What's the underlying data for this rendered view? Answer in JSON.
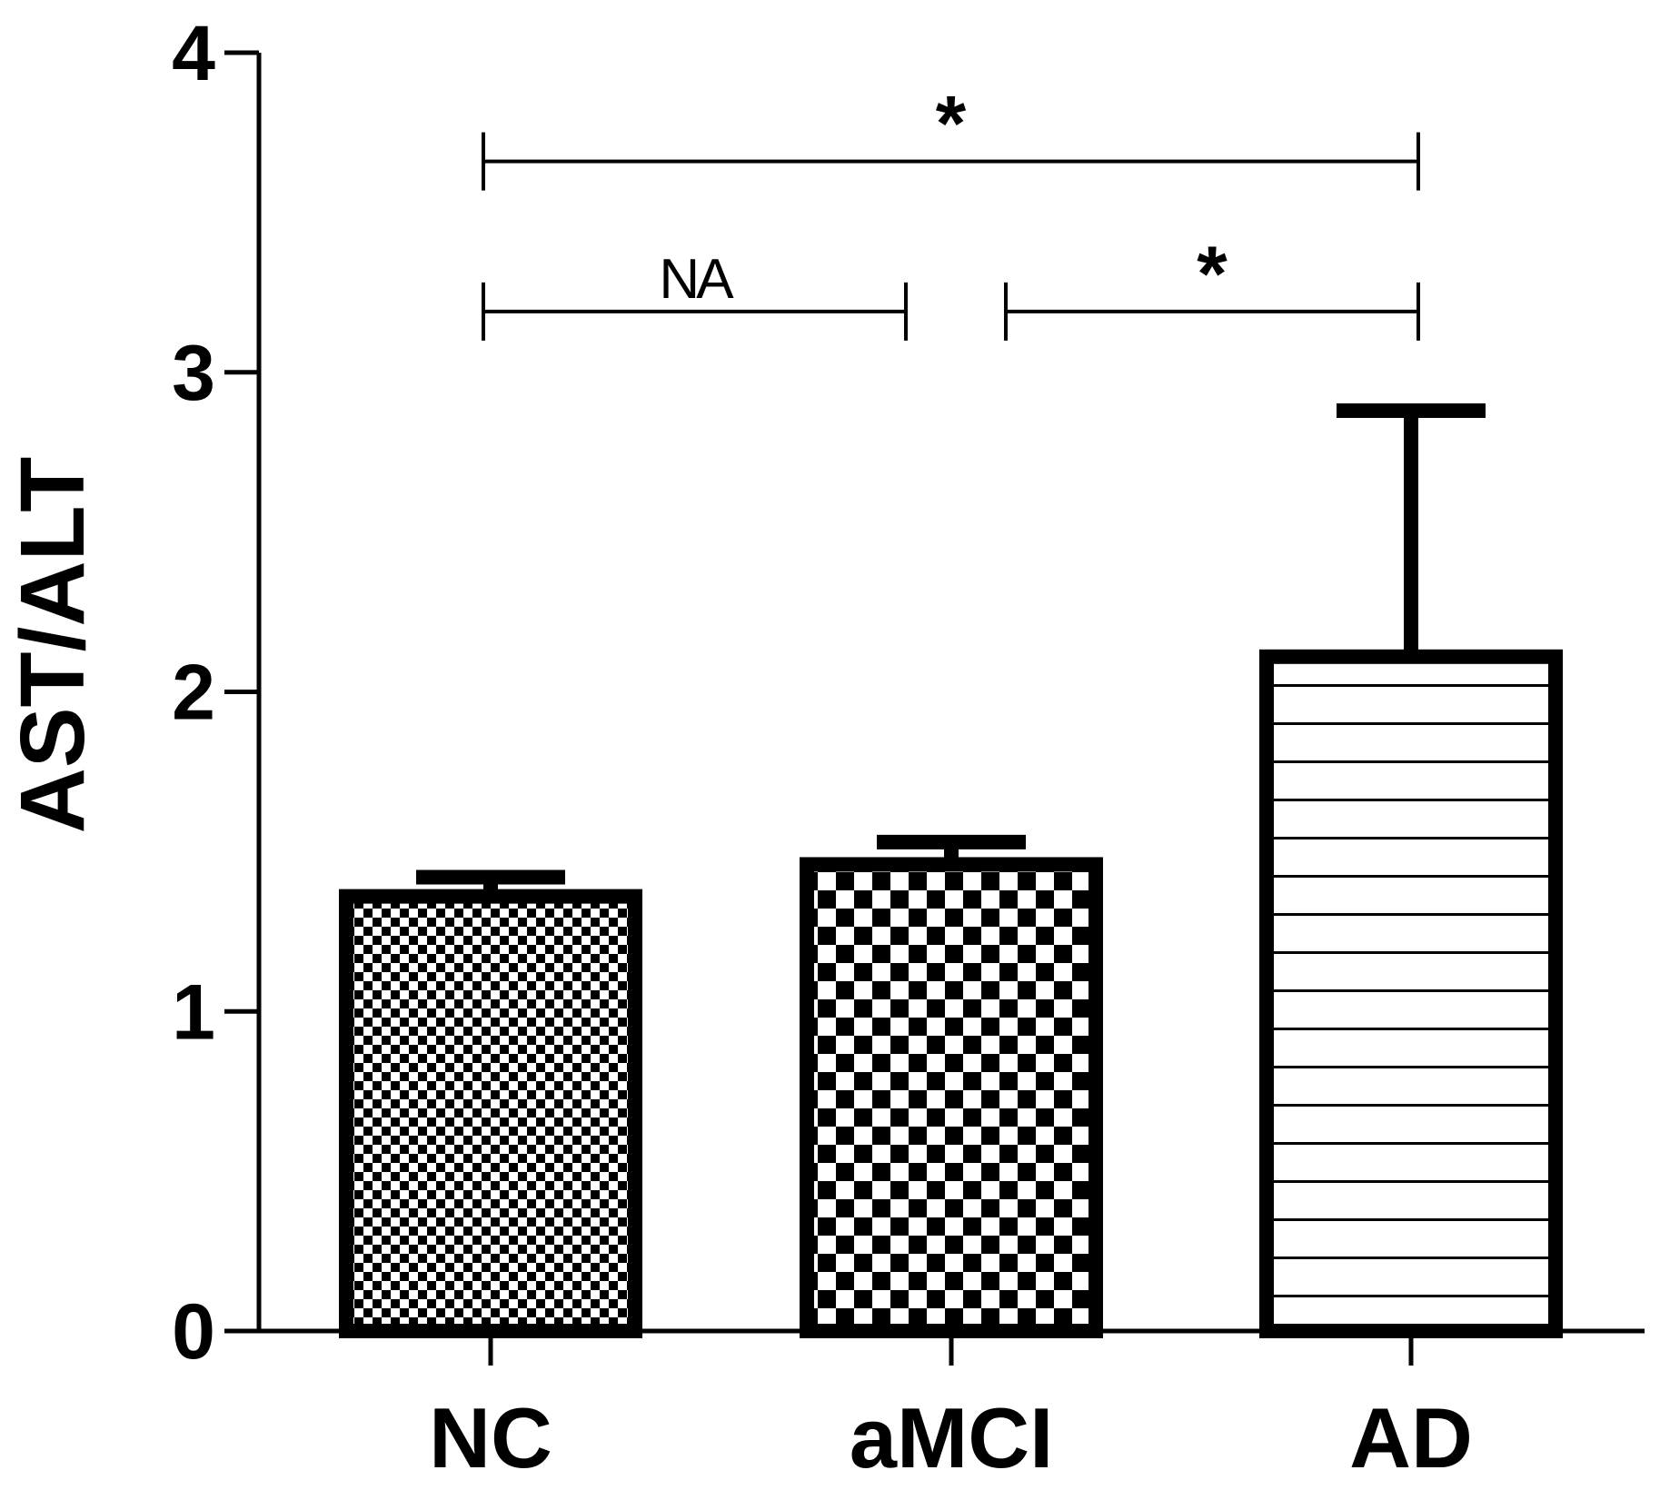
{
  "chart_data": {
    "type": "bar",
    "title": "",
    "xlabel": "",
    "ylabel": "AST/ALT",
    "ylim": [
      0,
      4
    ],
    "yticks": [
      "0",
      "1",
      "2",
      "3",
      "4"
    ],
    "categories": [
      "NC",
      "aMCI",
      "AD"
    ],
    "values": [
      1.36,
      1.46,
      2.11
    ],
    "error_upper": [
      1.42,
      1.53,
      2.88
    ],
    "fill_patterns": [
      "fine-checker",
      "coarse-checker",
      "horizontal-stripes"
    ],
    "significance": [
      {
        "from": "NC",
        "to": "AD",
        "label": "*",
        "level": 3.66
      },
      {
        "from": "NC",
        "to": "aMCI",
        "label": "NA",
        "level": 3.19
      },
      {
        "from": "aMCI",
        "to": "AD",
        "label": "*",
        "level": 3.19
      }
    ],
    "grid": false,
    "legend": "none",
    "colors": {
      "ink": "#000000",
      "background": "#ffffff"
    }
  }
}
